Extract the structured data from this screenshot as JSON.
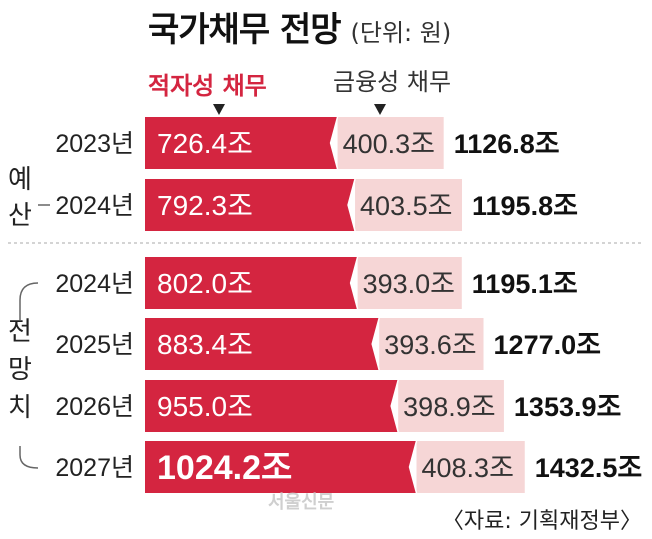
{
  "chart_data": {
    "type": "bar",
    "title": "국가채무 전망",
    "unit_note": "(단위: 원)",
    "legend": {
      "series_a": "적자성 채무",
      "series_b": "금융성 채무"
    },
    "group_labels": [
      "예산",
      "전망치"
    ],
    "categories": [
      "2023년",
      "2024년",
      "2024년",
      "2025년",
      "2026년",
      "2027년"
    ],
    "series": [
      {
        "name": "적자성 채무",
        "values": [
          726.4,
          792.3,
          802.0,
          883.4,
          955.0,
          1024.2
        ],
        "labels": [
          "726.4조",
          "792.3조",
          "802.0조",
          "883.4조",
          "955.0조",
          "1024.2조"
        ],
        "color": "#d42540"
      },
      {
        "name": "금융성 채무",
        "values": [
          400.3,
          403.5,
          393.0,
          393.6,
          398.9,
          408.3
        ],
        "labels": [
          "400.3조",
          "403.5조",
          "393.0조",
          "393.6조",
          "398.9조",
          "408.3조"
        ],
        "color": "#f6d6d6"
      }
    ],
    "totals": [
      "1126.8조",
      "1195.8조",
      "1195.1조",
      "1277.0조",
      "1353.9조",
      "1432.5조"
    ]
  },
  "source_note": "〈자료: 기획재정부〉",
  "watermark": "서울신문"
}
